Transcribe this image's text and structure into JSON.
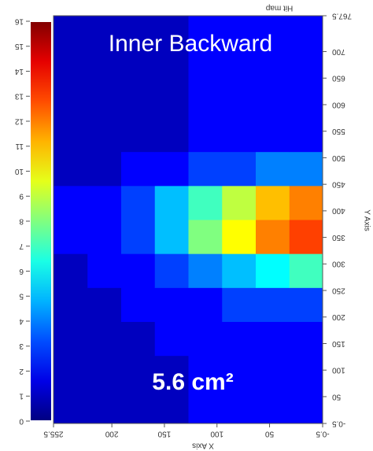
{
  "chart_data": {
    "type": "heatmap",
    "title": "Hit map",
    "overlay_title": "Inner Backward",
    "annotation": "5.6 cm²",
    "xlabel": "X Axis",
    "ylabel": "Y Axis",
    "xbins": [
      -0.5,
      31.5,
      63.5,
      95.5,
      127.5,
      159.5,
      191.5,
      223.5,
      255.5
    ],
    "ybins": [
      -0.5,
      63.5,
      127.5,
      191.5,
      255.5,
      319.5,
      383.5,
      447.5,
      511.5,
      575.5,
      639.5,
      703.5,
      767.5
    ],
    "z": [
      [
        2,
        2,
        2,
        2,
        1,
        1,
        1,
        1
      ],
      [
        2,
        2,
        2,
        2,
        1,
        1,
        1,
        1
      ],
      [
        2,
        2,
        2,
        2,
        2,
        1,
        1,
        1
      ],
      [
        3,
        3,
        3,
        2,
        2,
        2,
        1,
        1
      ],
      [
        7,
        6,
        5,
        4,
        3,
        2,
        2,
        1
      ],
      [
        13,
        12,
        10,
        8,
        5,
        3,
        2,
        2
      ],
      [
        12,
        11,
        9,
        7,
        5,
        3,
        2,
        2
      ],
      [
        4,
        4,
        3,
        3,
        2,
        2,
        1,
        1
      ],
      [
        2,
        2,
        2,
        2,
        1,
        1,
        1,
        1
      ],
      [
        2,
        2,
        2,
        2,
        1,
        1,
        1,
        1
      ],
      [
        2,
        2,
        2,
        2,
        1,
        1,
        1,
        1
      ],
      [
        2,
        2,
        2,
        2,
        1,
        1,
        1,
        1
      ]
    ],
    "xlim": [
      -0.5,
      255.5
    ],
    "xticks": [
      -0.5,
      50,
      100,
      150,
      200,
      255.5
    ],
    "ylim": [
      -0.5,
      767.5
    ],
    "yticks": [
      -0.5,
      50,
      100,
      150,
      200,
      250,
      300,
      350,
      400,
      450,
      500,
      550,
      600,
      650,
      700,
      767.5
    ],
    "clim": [
      0,
      16
    ],
    "cticks": [
      0,
      1,
      2,
      3,
      4,
      5,
      6,
      7,
      8,
      9,
      10,
      11,
      12,
      13,
      14,
      15,
      16
    ],
    "colormap": "jet"
  }
}
